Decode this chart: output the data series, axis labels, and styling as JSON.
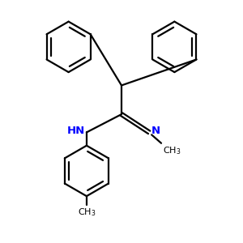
{
  "bg_color": "#ffffff",
  "line_color": "#000000",
  "nitrogen_color": "#0000ff",
  "line_width": 1.6,
  "figsize": [
    3.0,
    3.0
  ],
  "dpi": 100,
  "xlim": [
    0,
    10
  ],
  "ylim": [
    0,
    10
  ]
}
